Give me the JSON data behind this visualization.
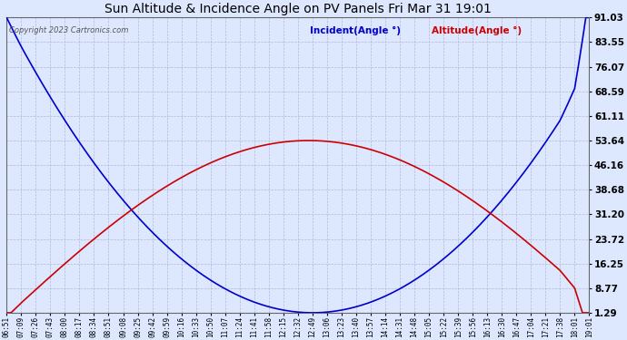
{
  "title": "Sun Altitude & Incidence Angle on PV Panels Fri Mar 31 19:01",
  "copyright": "Copyright 2023 Cartronics.com",
  "legend_incident": "Incident(Angle °)",
  "legend_altitude": "Altitude(Angle °)",
  "incident_color": "#0000cc",
  "altitude_color": "#cc0000",
  "bg_color": "#dde8ff",
  "grid_color": "#aaaacc",
  "ytick_labels": [
    "1.29",
    "8.77",
    "16.25",
    "23.72",
    "31.20",
    "38.68",
    "46.16",
    "53.64",
    "61.11",
    "68.59",
    "76.07",
    "83.55",
    "91.03"
  ],
  "ytick_vals": [
    1.29,
    8.77,
    16.25,
    23.72,
    31.2,
    38.68,
    46.16,
    53.64,
    61.11,
    68.59,
    76.07,
    83.55,
    91.03
  ],
  "ymin": 1.29,
  "ymax": 91.03,
  "x_labels": [
    "06:51",
    "07:09",
    "07:26",
    "07:43",
    "08:00",
    "08:17",
    "08:34",
    "08:51",
    "09:08",
    "09:25",
    "09:42",
    "09:59",
    "10:16",
    "10:33",
    "10:50",
    "11:07",
    "11:24",
    "11:41",
    "11:58",
    "12:15",
    "12:32",
    "12:49",
    "13:06",
    "13:23",
    "13:40",
    "13:57",
    "14:14",
    "14:31",
    "14:48",
    "15:05",
    "15:22",
    "15:39",
    "15:56",
    "16:13",
    "16:30",
    "16:47",
    "17:04",
    "17:21",
    "17:38",
    "18:01",
    "19:01"
  ],
  "line_width": 1.2,
  "t_rise_min": 411,
  "t_set_min": 1118,
  "t_noon_min": 769,
  "alt_peak": 53.64,
  "inc_min": 1.29,
  "inc_max": 91.03
}
